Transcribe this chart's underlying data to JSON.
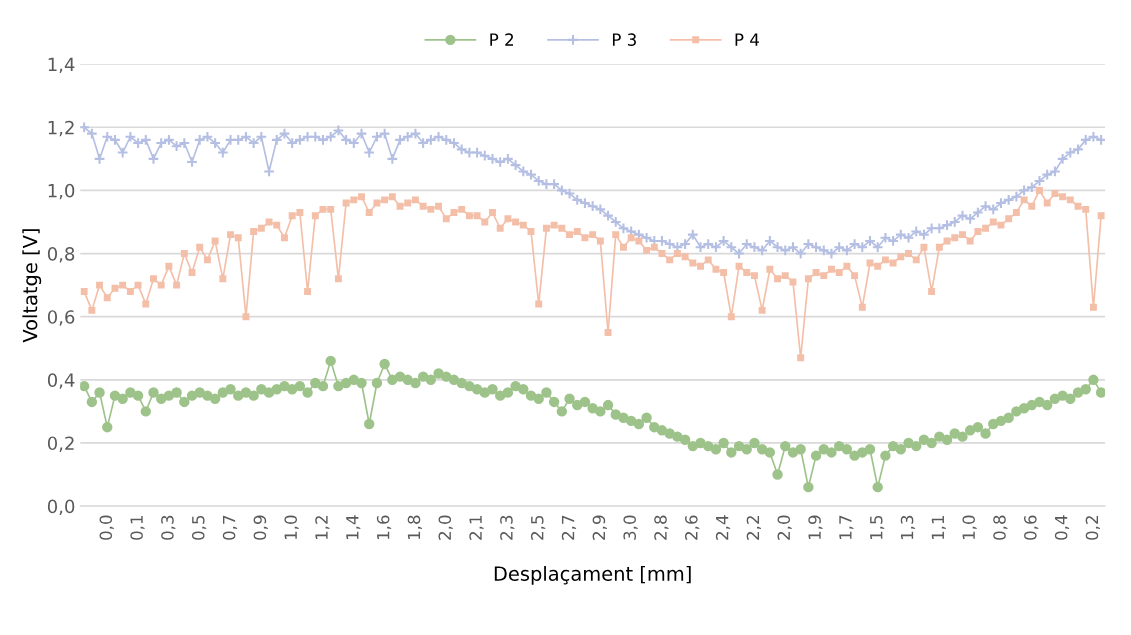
{
  "chart_data": {
    "type": "line",
    "xlabel": "Desplaçament [mm]",
    "ylabel": "Voltatge [V]",
    "categories": [
      null,
      null,
      null,
      "0,0",
      null,
      null,
      null,
      "0,1",
      null,
      null,
      null,
      "0,3",
      null,
      null,
      null,
      "0,5",
      null,
      null,
      null,
      "0,7",
      null,
      null,
      null,
      "0,9",
      null,
      null,
      null,
      "1,0",
      null,
      null,
      null,
      "1,2",
      null,
      null,
      null,
      "1,4",
      null,
      null,
      null,
      "1,6",
      null,
      null,
      null,
      "1,8",
      null,
      null,
      null,
      "2,0",
      null,
      null,
      null,
      "2,1",
      null,
      null,
      null,
      "2,3",
      null,
      null,
      null,
      "2,5",
      null,
      null,
      null,
      "2,7",
      null,
      null,
      null,
      "2,9",
      null,
      null,
      null,
      "3,0",
      null,
      null,
      null,
      "2,8",
      null,
      null,
      null,
      "2,6",
      null,
      null,
      null,
      "2,4",
      null,
      null,
      null,
      "2,2",
      null,
      null,
      null,
      "2,0",
      null,
      null,
      null,
      "1,9",
      null,
      null,
      null,
      "1,7",
      null,
      null,
      null,
      "1,5",
      null,
      null,
      null,
      "1,3",
      null,
      null,
      null,
      "1,1",
      null,
      null,
      null,
      "1,0",
      null,
      null,
      null,
      "0,8",
      null,
      null,
      null,
      "0,6",
      null,
      null,
      null,
      "0,4",
      null,
      null,
      null,
      "0,2",
      null
    ],
    "series": [
      {
        "name": "P 2",
        "color": "#9dc38a",
        "marker": "circle",
        "values": [
          0.38,
          0.33,
          0.36,
          0.25,
          0.35,
          0.34,
          0.36,
          0.35,
          0.3,
          0.36,
          0.34,
          0.35,
          0.36,
          0.33,
          0.35,
          0.36,
          0.35,
          0.34,
          0.36,
          0.37,
          0.35,
          0.36,
          0.35,
          0.37,
          0.36,
          0.37,
          0.38,
          0.37,
          0.38,
          0.36,
          0.39,
          0.38,
          0.46,
          0.38,
          0.39,
          0.4,
          0.39,
          0.26,
          0.39,
          0.45,
          0.4,
          0.41,
          0.4,
          0.39,
          0.41,
          0.4,
          0.42,
          0.41,
          0.4,
          0.39,
          0.38,
          0.37,
          0.36,
          0.37,
          0.35,
          0.36,
          0.38,
          0.37,
          0.35,
          0.34,
          0.36,
          0.33,
          0.3,
          0.34,
          0.32,
          0.33,
          0.31,
          0.3,
          0.32,
          0.29,
          0.28,
          0.27,
          0.26,
          0.28,
          0.25,
          0.24,
          0.23,
          0.22,
          0.21,
          0.19,
          0.2,
          0.19,
          0.18,
          0.2,
          0.17,
          0.19,
          0.18,
          0.2,
          0.18,
          0.17,
          0.1,
          0.19,
          0.17,
          0.18,
          0.06,
          0.16,
          0.18,
          0.17,
          0.19,
          0.18,
          0.16,
          0.17,
          0.18,
          0.06,
          0.16,
          0.19,
          0.18,
          0.2,
          0.19,
          0.21,
          0.2,
          0.22,
          0.21,
          0.23,
          0.22,
          0.24,
          0.25,
          0.23,
          0.26,
          0.27,
          0.28,
          0.3,
          0.31,
          0.32,
          0.33,
          0.32,
          0.34,
          0.35,
          0.34,
          0.36,
          0.37,
          0.4,
          0.36
        ]
      },
      {
        "name": "P 3",
        "color": "#b4bfe3",
        "marker": "cross",
        "values": [
          1.2,
          1.18,
          1.1,
          1.17,
          1.16,
          1.12,
          1.17,
          1.15,
          1.16,
          1.1,
          1.15,
          1.16,
          1.14,
          1.15,
          1.09,
          1.16,
          1.17,
          1.15,
          1.12,
          1.16,
          1.16,
          1.17,
          1.15,
          1.17,
          1.06,
          1.16,
          1.18,
          1.15,
          1.16,
          1.17,
          1.17,
          1.16,
          1.17,
          1.19,
          1.16,
          1.15,
          1.18,
          1.12,
          1.17,
          1.18,
          1.1,
          1.16,
          1.17,
          1.18,
          1.15,
          1.16,
          1.17,
          1.16,
          1.15,
          1.13,
          1.12,
          1.12,
          1.11,
          1.1,
          1.09,
          1.1,
          1.08,
          1.06,
          1.05,
          1.03,
          1.02,
          1.02,
          1.0,
          0.99,
          0.97,
          0.96,
          0.95,
          0.94,
          0.92,
          0.9,
          0.88,
          0.87,
          0.86,
          0.85,
          0.84,
          0.84,
          0.83,
          0.82,
          0.83,
          0.86,
          0.82,
          0.83,
          0.82,
          0.84,
          0.82,
          0.8,
          0.83,
          0.82,
          0.81,
          0.84,
          0.82,
          0.81,
          0.82,
          0.8,
          0.83,
          0.82,
          0.81,
          0.8,
          0.82,
          0.81,
          0.83,
          0.82,
          0.84,
          0.82,
          0.85,
          0.84,
          0.86,
          0.85,
          0.87,
          0.86,
          0.88,
          0.88,
          0.89,
          0.9,
          0.92,
          0.91,
          0.93,
          0.95,
          0.94,
          0.96,
          0.97,
          0.98,
          1.0,
          1.01,
          1.03,
          1.05,
          1.06,
          1.1,
          1.12,
          1.13,
          1.16,
          1.17,
          1.16
        ]
      },
      {
        "name": "P 4",
        "color": "#f4bfa8",
        "marker": "square",
        "values": [
          0.68,
          0.62,
          0.7,
          0.66,
          0.69,
          0.7,
          0.68,
          0.7,
          0.64,
          0.72,
          0.7,
          0.76,
          0.7,
          0.8,
          0.74,
          0.82,
          0.78,
          0.84,
          0.72,
          0.86,
          0.85,
          0.6,
          0.87,
          0.88,
          0.9,
          0.89,
          0.85,
          0.92,
          0.93,
          0.68,
          0.92,
          0.94,
          0.94,
          0.72,
          0.96,
          0.97,
          0.98,
          0.93,
          0.96,
          0.97,
          0.98,
          0.95,
          0.96,
          0.97,
          0.95,
          0.94,
          0.95,
          0.91,
          0.93,
          0.94,
          0.92,
          0.92,
          0.9,
          0.93,
          0.88,
          0.91,
          0.9,
          0.89,
          0.87,
          0.64,
          0.88,
          0.89,
          0.88,
          0.86,
          0.87,
          0.85,
          0.86,
          0.84,
          0.55,
          0.86,
          0.82,
          0.85,
          0.84,
          0.81,
          0.82,
          0.8,
          0.78,
          0.8,
          0.79,
          0.77,
          0.76,
          0.78,
          0.75,
          0.74,
          0.6,
          0.76,
          0.74,
          0.73,
          0.62,
          0.75,
          0.72,
          0.73,
          0.71,
          0.47,
          0.72,
          0.74,
          0.73,
          0.75,
          0.74,
          0.76,
          0.73,
          0.63,
          0.77,
          0.76,
          0.78,
          0.77,
          0.79,
          0.8,
          0.78,
          0.82,
          0.68,
          0.82,
          0.84,
          0.85,
          0.86,
          0.84,
          0.87,
          0.88,
          0.9,
          0.89,
          0.91,
          0.93,
          0.97,
          0.95,
          1.0,
          0.96,
          0.99,
          0.98,
          0.97,
          0.95,
          0.94,
          0.63,
          0.92
        ]
      }
    ],
    "ylim": [
      0,
      1.4
    ],
    "yticks": [
      {
        "value": 0,
        "label": "0,0"
      },
      {
        "value": 0.2,
        "label": "0,2"
      },
      {
        "value": 0.4,
        "label": "0,4"
      },
      {
        "value": 0.6,
        "label": "0,6"
      },
      {
        "value": 0.8,
        "label": "0,8"
      },
      {
        "value": 1.0,
        "label": "1,0"
      },
      {
        "value": 1.2,
        "label": "1,2"
      },
      {
        "value": 1.4,
        "label": "1,4"
      }
    ],
    "grid": "y",
    "legend": "top",
    "line_style": "solid"
  }
}
